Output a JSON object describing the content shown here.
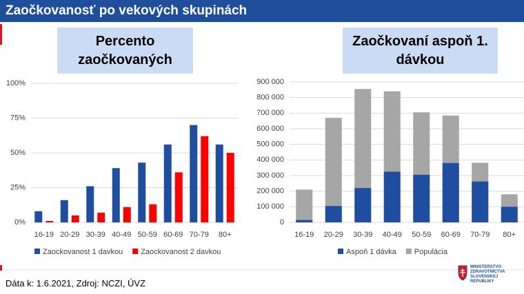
{
  "header": {
    "title": "Zaočkovanosť po vekových skupinách"
  },
  "chart_data": [
    {
      "type": "bar",
      "title": "Percento zaočkovaných",
      "categories": [
        "16-19",
        "20-29",
        "30-39",
        "40-49",
        "50-59",
        "60-69",
        "70-79",
        "80+"
      ],
      "series": [
        {
          "name": "Zaockovanost 1 davkou",
          "color": "#1f4ea1",
          "values": [
            8,
            16,
            26,
            39,
            43,
            56,
            70,
            56
          ]
        },
        {
          "name": "Zaockovanost 2 davkou",
          "color": "#ff0000",
          "values": [
            1,
            5,
            7,
            11,
            13,
            36,
            62,
            50
          ]
        }
      ],
      "ylim": [
        0,
        100
      ],
      "yticks": [
        {
          "value": 0,
          "label": "0%"
        },
        {
          "value": 25,
          "label": "25%"
        },
        {
          "value": 50,
          "label": "50%"
        },
        {
          "value": 75,
          "label": "75%"
        },
        {
          "value": 100,
          "label": "100%"
        }
      ],
      "grid": true
    },
    {
      "type": "overlay",
      "title": "Zaočkovaní aspoň 1. dávkou",
      "categories": [
        "16-19",
        "20-29",
        "30-39",
        "40-49",
        "50-59",
        "60-69",
        "70-79",
        "80+"
      ],
      "series": [
        {
          "name": "Aspoň 1 dávka",
          "color": "#1f4ea1",
          "values": [
            15000,
            105000,
            220000,
            325000,
            305000,
            380000,
            262000,
            100000
          ]
        },
        {
          "name": "Populácia",
          "color": "#a6a6a6",
          "values": [
            210000,
            670000,
            855000,
            840000,
            705000,
            685000,
            382000,
            180000
          ]
        }
      ],
      "ylim": [
        0,
        900000
      ],
      "yticks": [
        {
          "value": 0,
          "label": "0"
        },
        {
          "value": 100000,
          "label": "100 000"
        },
        {
          "value": 200000,
          "label": "200 000"
        },
        {
          "value": 300000,
          "label": "300 000"
        },
        {
          "value": 400000,
          "label": "400 000"
        },
        {
          "value": 500000,
          "label": "500 000"
        },
        {
          "value": 600000,
          "label": "600 000"
        },
        {
          "value": 700000,
          "label": "700 000"
        },
        {
          "value": 800000,
          "label": "800 000"
        },
        {
          "value": 900000,
          "label": "900 000"
        }
      ],
      "grid": true
    }
  ],
  "footer": {
    "source": "Dáta k: 1.6.2021, Zdroj: NCZI, ÚVZ",
    "logo": "MINISTERSTVO ZDRAVOTNÍCTVA SLOVENSKEJ REPUBLIKY"
  }
}
